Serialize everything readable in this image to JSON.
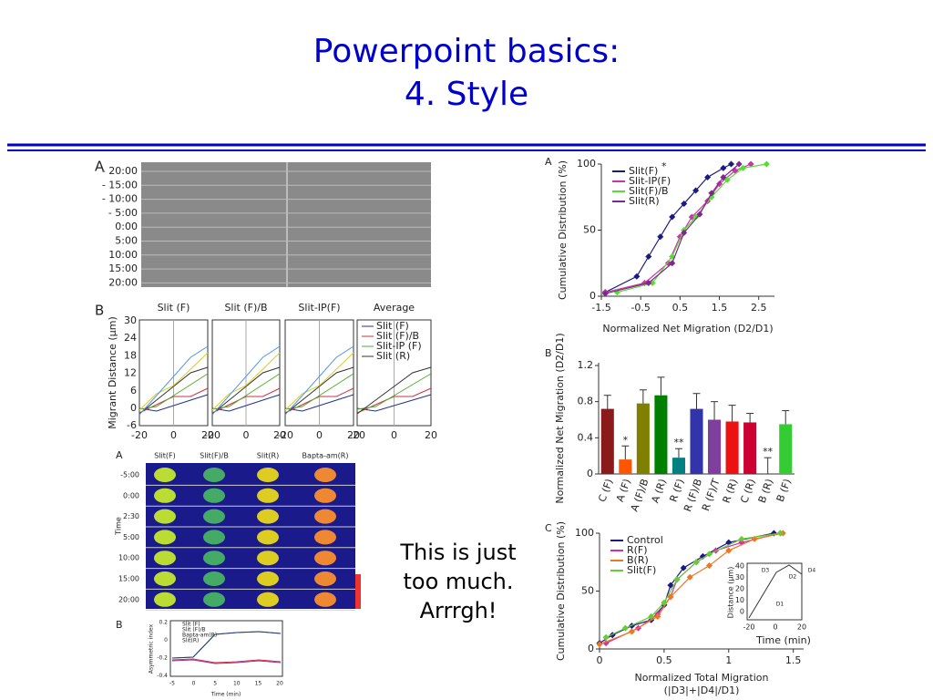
{
  "slide": {
    "title": [
      "Powerpoint basics:",
      "4.  Style"
    ],
    "caption": [
      "This is just",
      "too much.",
      "Arrrgh!"
    ]
  },
  "figures": {
    "timelapse": {
      "label": "A",
      "times": [
        "- 20:00",
        "- 15:00",
        "- 10:00",
        "- 5:00",
        "0:00",
        "5:00",
        "10:00",
        "15:00",
        "20:00"
      ]
    },
    "traces": {
      "label": "B",
      "panels": [
        "Slit (F)",
        "Slit (F)/B",
        "Slit-IP(F)",
        "Average"
      ],
      "yticks": [
        "30",
        "24",
        "18",
        "12",
        "6",
        "0",
        "-6"
      ],
      "xticks": [
        "-20",
        "0",
        "20"
      ],
      "ylabel": "Migrant Distance (µm)",
      "legend": [
        "Slit (F)",
        "Slit (F)/B",
        "Slit-IP (F)",
        "Slit (R)"
      ]
    },
    "imaging": {
      "label": "A",
      "columns": [
        "Slit(F)",
        "Slit(F)/B",
        "Slit(R)",
        "Bapta-am(R)"
      ],
      "rows": [
        "-5:00",
        "0:00",
        "2:30",
        "5:00",
        "10:00",
        "15:00",
        "20:00"
      ],
      "ylabel": "Time"
    },
    "asymmetry": {
      "label": "B",
      "yticks": [
        "0.2",
        "0",
        "-0.2",
        "-0.4"
      ],
      "xticks": [
        "-5",
        "0",
        "5",
        "10",
        "15",
        "20"
      ],
      "xlabel": "Time (min)",
      "ylabel": "Asymmetric index",
      "legend": [
        "Slit (F)",
        "Slit (F)/B",
        "Bapta-am(R)",
        "Slit(R)"
      ]
    }
  },
  "chart_data": [
    {
      "type": "line",
      "label": "A",
      "ylabel": "Cumulative Distribution (%)",
      "xlabel": "Normalized Net Migration (D2/D1)",
      "annotation": "*",
      "xlim": [
        -1.5,
        2.9
      ],
      "xticks": [
        -1.5,
        -0.5,
        0.5,
        1.5,
        2.5
      ],
      "ylim": [
        0,
        100
      ],
      "yticks": [
        0,
        50,
        100
      ],
      "series": [
        {
          "name": "Slit(F)",
          "color": "#1a1a80",
          "x": [
            -1.4,
            -0.6,
            -0.3,
            0,
            0.3,
            0.6,
            0.9,
            1.2,
            1.6,
            1.8
          ],
          "values": [
            3,
            15,
            30,
            45,
            60,
            70,
            80,
            90,
            97,
            100
          ]
        },
        {
          "name": "Slit-IP(F)",
          "color": "#cc33aa",
          "x": [
            -1.4,
            -0.4,
            0.2,
            0.5,
            0.8,
            1.2,
            1.5,
            1.9,
            2.3
          ],
          "values": [
            3,
            10,
            25,
            45,
            60,
            72,
            85,
            95,
            100
          ]
        },
        {
          "name": "Slit(F)/B",
          "color": "#55dd33",
          "x": [
            -1.1,
            -0.2,
            0.3,
            0.6,
            0.9,
            1.3,
            1.7,
            2.1,
            2.7
          ],
          "values": [
            3,
            10,
            30,
            50,
            60,
            75,
            88,
            97,
            100
          ]
        },
        {
          "name": "Slit(R)",
          "color": "#7a2a8a",
          "x": [
            -1.4,
            -0.3,
            0.3,
            0.6,
            1.0,
            1.3,
            1.6,
            2.0
          ],
          "values": [
            2,
            10,
            25,
            48,
            62,
            78,
            90,
            100
          ]
        }
      ]
    },
    {
      "type": "bar",
      "label": "B",
      "ylabel": "Normalized Net Migration (D2/D1)",
      "categories": [
        "C (F)",
        "A (F)",
        "A (F)/B",
        "A (R)",
        "R (F)",
        "R (F)/B",
        "R (F)/T",
        "R (R)",
        "C (R)",
        "B (R)",
        "B (F)"
      ],
      "values": [
        0.72,
        0.16,
        0.78,
        0.87,
        0.18,
        0.72,
        0.6,
        0.58,
        0.57,
        0,
        0.55
      ],
      "errors": [
        0.15,
        0.15,
        0.15,
        0.2,
        0.1,
        0.17,
        0.2,
        0.18,
        0.1,
        0.18,
        0.15
      ],
      "colors": [
        "#8b1a1a",
        "#ff5500",
        "#808000",
        "#008000",
        "#008080",
        "#3333aa",
        "#7f3f9f",
        "#ee1111",
        "#cc0033",
        "#888888",
        "#33cc33"
      ],
      "significance": [
        null,
        "*",
        null,
        null,
        "**",
        null,
        null,
        null,
        null,
        "**",
        null
      ],
      "ylim": [
        0,
        1.23
      ],
      "yticks": [
        0,
        0.4,
        0.8,
        1.2
      ]
    },
    {
      "type": "line",
      "label": "C",
      "ylabel": "Cumulative Distribution (%)",
      "xlabel": [
        "Normalized Total Migration",
        "(|D3|+|D4|/D1)"
      ],
      "xlim": [
        0,
        1.58
      ],
      "xticks": [
        0,
        0.5,
        1,
        1.5
      ],
      "ylim": [
        0,
        100
      ],
      "yticks": [
        0,
        50,
        100
      ],
      "inset": {
        "ylabel": "Distance (µm)",
        "yticks": [
          "40",
          "30",
          "20",
          "10",
          "0"
        ],
        "xticks": [
          "-20",
          "0",
          "20"
        ],
        "xlabel": "Time (min)",
        "marks": [
          "D3",
          "D2",
          "D4",
          "D1"
        ]
      },
      "series": [
        {
          "name": "Control",
          "color": "#1a1a80",
          "x": [
            0,
            0.1,
            0.25,
            0.4,
            0.5,
            0.55,
            0.65,
            0.8,
            1.0,
            1.35
          ],
          "values": [
            5,
            12,
            20,
            25,
            38,
            55,
            70,
            80,
            92,
            100
          ]
        },
        {
          "name": "R(F)",
          "color": "#cc33aa",
          "x": [
            0.05,
            0.3,
            0.45,
            0.55,
            0.6,
            0.75,
            0.9,
            1.1,
            1.4
          ],
          "values": [
            5,
            18,
            30,
            45,
            60,
            75,
            85,
            92,
            100
          ]
        },
        {
          "name": "B(R)",
          "color": "#ee7722",
          "x": [
            0,
            0.25,
            0.45,
            0.55,
            0.7,
            0.85,
            1.0,
            1.2,
            1.42
          ],
          "values": [
            4,
            15,
            28,
            45,
            62,
            72,
            85,
            95,
            100
          ]
        },
        {
          "name": "Slit(F)",
          "color": "#66cc33",
          "x": [
            0.05,
            0.2,
            0.4,
            0.5,
            0.6,
            0.75,
            0.85,
            1.1,
            1.4
          ],
          "values": [
            10,
            18,
            28,
            40,
            60,
            75,
            82,
            95,
            100
          ]
        }
      ]
    }
  ]
}
